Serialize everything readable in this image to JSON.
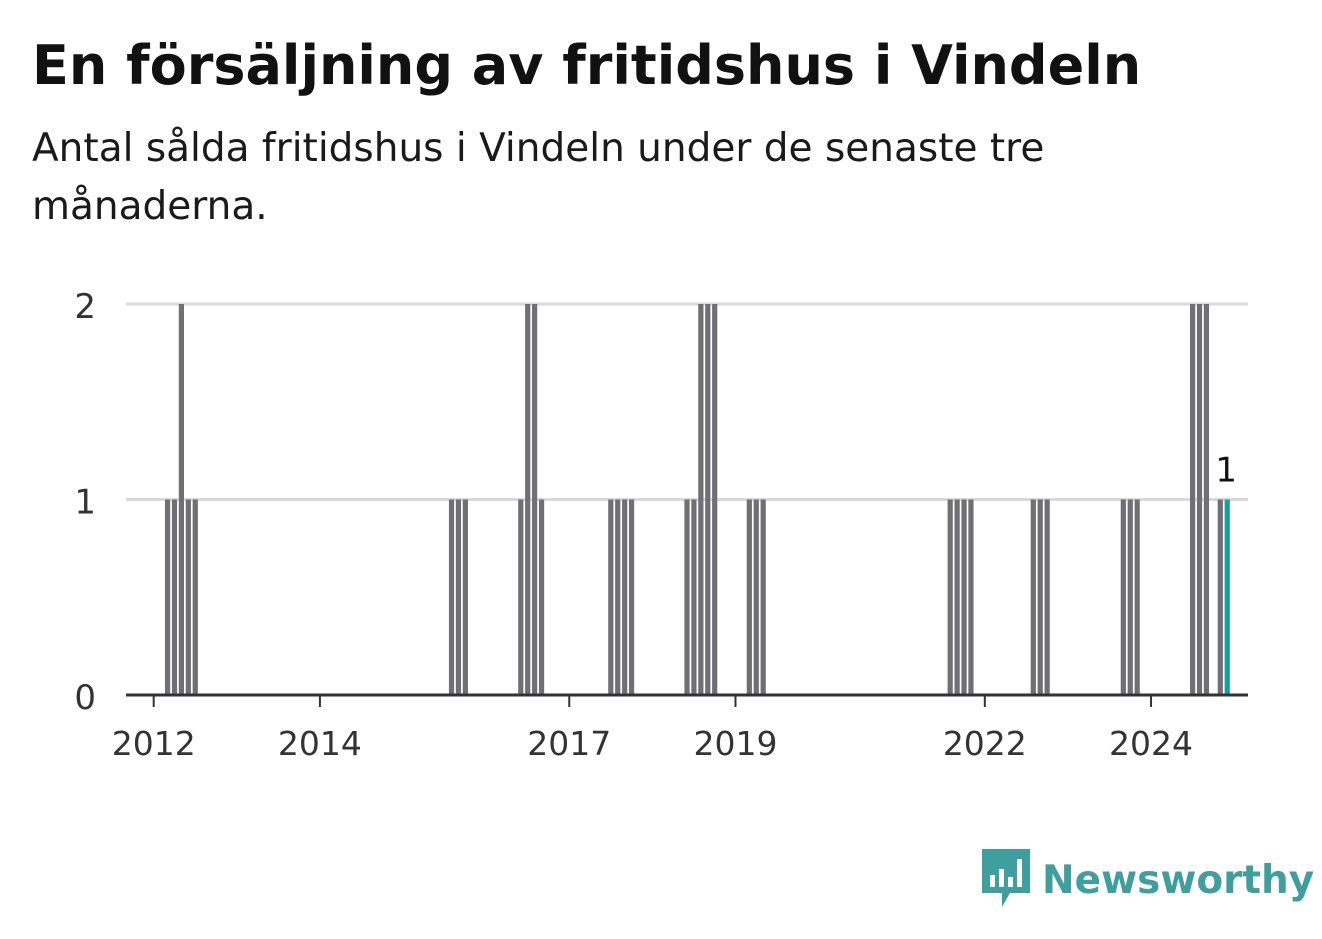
{
  "header": {
    "title": "En försäljning av fritidshus i Vindeln",
    "subtitle": "Antal sålda fritidshus i Vindeln under de senaste tre månaderna."
  },
  "brand": {
    "name": "Newsworthy",
    "icon": "newsworthy-logo-icon",
    "color": "#3f9e9e"
  },
  "colors": {
    "bar": "#707074",
    "highlight": "#1a9e99",
    "grid": "#d9d9d9",
    "axis": "#333333"
  },
  "chart_data": {
    "type": "bar",
    "title": "En försäljning av fritidshus i Vindeln",
    "subtitle": "Antal sålda fritidshus i Vindeln under de senaste tre månaderna.",
    "xlabel": "",
    "ylabel": "",
    "x_axis": "time",
    "x_range": [
      "2011-09-01",
      "2025-03-01"
    ],
    "xticks": [
      {
        "date": "2012-01-01",
        "label": "2012"
      },
      {
        "date": "2014-01-01",
        "label": "2014"
      },
      {
        "date": "2017-01-01",
        "label": "2017"
      },
      {
        "date": "2019-01-01",
        "label": "2019"
      },
      {
        "date": "2022-01-01",
        "label": "2022"
      },
      {
        "date": "2024-01-01",
        "label": "2024"
      }
    ],
    "ylim": [
      0,
      2
    ],
    "yticks": [
      0,
      1,
      2
    ],
    "grid": true,
    "legend": "none",
    "series": [
      {
        "points": [
          {
            "date": "2012-03-01",
            "value": 1
          },
          {
            "date": "2012-04-01",
            "value": 1
          },
          {
            "date": "2012-05-01",
            "value": 2
          },
          {
            "date": "2012-06-01",
            "value": 1
          },
          {
            "date": "2012-07-01",
            "value": 1
          },
          {
            "date": "2015-08-01",
            "value": 1
          },
          {
            "date": "2015-09-01",
            "value": 1
          },
          {
            "date": "2015-10-01",
            "value": 1
          },
          {
            "date": "2016-06-01",
            "value": 1
          },
          {
            "date": "2016-07-01",
            "value": 2
          },
          {
            "date": "2016-08-01",
            "value": 2
          },
          {
            "date": "2016-09-01",
            "value": 1
          },
          {
            "date": "2017-07-01",
            "value": 1
          },
          {
            "date": "2017-08-01",
            "value": 1
          },
          {
            "date": "2017-09-01",
            "value": 1
          },
          {
            "date": "2017-10-01",
            "value": 1
          },
          {
            "date": "2018-06-01",
            "value": 1
          },
          {
            "date": "2018-07-01",
            "value": 1
          },
          {
            "date": "2018-08-01",
            "value": 2
          },
          {
            "date": "2018-09-01",
            "value": 2
          },
          {
            "date": "2018-10-01",
            "value": 2
          },
          {
            "date": "2019-03-01",
            "value": 1
          },
          {
            "date": "2019-04-01",
            "value": 1
          },
          {
            "date": "2019-05-01",
            "value": 1
          },
          {
            "date": "2021-08-01",
            "value": 1
          },
          {
            "date": "2021-09-01",
            "value": 1
          },
          {
            "date": "2021-10-01",
            "value": 1
          },
          {
            "date": "2021-11-01",
            "value": 1
          },
          {
            "date": "2022-08-01",
            "value": 1
          },
          {
            "date": "2022-09-01",
            "value": 1
          },
          {
            "date": "2022-10-01",
            "value": 1
          },
          {
            "date": "2023-09-01",
            "value": 1
          },
          {
            "date": "2023-10-01",
            "value": 1
          },
          {
            "date": "2023-11-01",
            "value": 1
          },
          {
            "date": "2024-07-01",
            "value": 2
          },
          {
            "date": "2024-08-01",
            "value": 2
          },
          {
            "date": "2024-09-01",
            "value": 2
          },
          {
            "date": "2024-11-01",
            "value": 1
          },
          {
            "date": "2024-12-01",
            "value": 1
          }
        ]
      }
    ],
    "highlight": {
      "date": "2024-12-01",
      "value": 1,
      "label": "1"
    }
  }
}
